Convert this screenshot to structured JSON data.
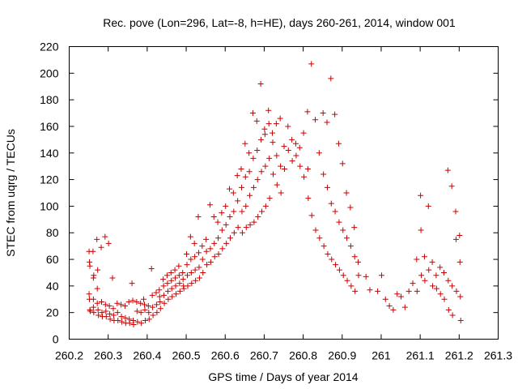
{
  "chart_data": {
    "type": "scatter",
    "title": "Rec. pove (Lon=296, Lat=-8, h=HE), days 260-261, 2014, window 001",
    "xlabel": "GPS time / Days of year 2014",
    "ylabel": "STEC from uqrg / TECUs",
    "xlim": [
      260.2,
      261.3
    ],
    "ylim": [
      0,
      220
    ],
    "xticks": [
      260.2,
      260.3,
      260.4,
      260.5,
      260.6,
      260.7,
      260.8,
      260.9,
      261,
      261.1,
      261.2,
      261.3
    ],
    "yticks": [
      0,
      20,
      40,
      60,
      80,
      100,
      120,
      140,
      160,
      180,
      200,
      220
    ],
    "xtick_labels": [
      "260.2",
      "260.3",
      "260.4",
      "260.5",
      "260.6",
      "260.7",
      "260.8",
      "260.9",
      "261",
      "261.1",
      "261.2",
      "261.3"
    ],
    "ytick_labels": [
      "0",
      "20",
      "40",
      "60",
      "80",
      "100",
      "120",
      "140",
      "160",
      "180",
      "200",
      "220"
    ],
    "grid": false,
    "legend": "none",
    "marker": "plus",
    "color": "#cc0000",
    "points": [
      [
        260.251,
        66
      ],
      [
        260.252,
        58
      ],
      [
        260.253,
        55
      ],
      [
        260.261,
        66
      ],
      [
        260.262,
        46
      ],
      [
        260.263,
        48
      ],
      [
        260.271,
        75
      ],
      [
        260.273,
        52
      ],
      [
        260.282,
        69
      ],
      [
        260.292,
        77
      ],
      [
        260.301,
        72
      ],
      [
        260.311,
        46
      ],
      [
        260.361,
        42
      ],
      [
        260.391,
        30
      ],
      [
        260.411,
        53
      ],
      [
        260.251,
        34
      ],
      [
        260.252,
        30
      ],
      [
        260.253,
        22
      ],
      [
        260.254,
        21
      ],
      [
        260.262,
        30
      ],
      [
        260.262,
        24
      ],
      [
        260.263,
        20
      ],
      [
        260.272,
        38
      ],
      [
        260.272,
        27
      ],
      [
        260.274,
        22
      ],
      [
        260.275,
        18
      ],
      [
        260.283,
        28
      ],
      [
        260.284,
        20
      ],
      [
        260.285,
        17
      ],
      [
        260.293,
        26
      ],
      [
        260.294,
        21
      ],
      [
        260.295,
        17
      ],
      [
        260.303,
        25
      ],
      [
        260.304,
        19
      ],
      [
        260.305,
        15
      ],
      [
        260.313,
        23
      ],
      [
        260.314,
        18
      ],
      [
        260.315,
        14
      ],
      [
        260.323,
        27
      ],
      [
        260.324,
        20
      ],
      [
        260.325,
        14
      ],
      [
        260.333,
        26
      ],
      [
        260.334,
        17
      ],
      [
        260.335,
        13
      ],
      [
        260.343,
        25
      ],
      [
        260.344,
        16
      ],
      [
        260.345,
        12
      ],
      [
        260.353,
        28
      ],
      [
        260.354,
        15
      ],
      [
        260.355,
        12
      ],
      [
        260.363,
        29
      ],
      [
        260.364,
        14
      ],
      [
        260.365,
        11
      ],
      [
        260.373,
        28
      ],
      [
        260.374,
        21
      ],
      [
        260.375,
        13
      ],
      [
        260.383,
        27
      ],
      [
        260.384,
        20
      ],
      [
        260.385,
        12
      ],
      [
        260.393,
        26
      ],
      [
        260.394,
        22
      ],
      [
        260.395,
        14
      ],
      [
        260.403,
        25
      ],
      [
        260.404,
        20
      ],
      [
        260.405,
        15
      ],
      [
        260.413,
        33
      ],
      [
        260.414,
        24
      ],
      [
        260.415,
        18
      ],
      [
        260.423,
        35
      ],
      [
        260.424,
        26
      ],
      [
        260.425,
        20
      ],
      [
        260.431,
        37
      ],
      [
        260.432,
        32
      ],
      [
        260.433,
        28
      ],
      [
        260.434,
        23
      ],
      [
        260.441,
        45
      ],
      [
        260.442,
        40
      ],
      [
        260.443,
        33
      ],
      [
        260.444,
        27
      ],
      [
        260.451,
        48
      ],
      [
        260.452,
        42
      ],
      [
        260.453,
        36
      ],
      [
        260.454,
        30
      ],
      [
        260.461,
        50
      ],
      [
        260.462,
        44
      ],
      [
        260.463,
        38
      ],
      [
        260.464,
        32
      ],
      [
        260.471,
        52
      ],
      [
        260.472,
        46
      ],
      [
        260.473,
        40
      ],
      [
        260.474,
        34
      ],
      [
        260.481,
        55
      ],
      [
        260.482,
        48
      ],
      [
        260.483,
        42
      ],
      [
        260.484,
        36
      ],
      [
        260.491,
        50
      ],
      [
        260.492,
        45
      ],
      [
        260.493,
        40
      ],
      [
        260.494,
        38
      ],
      [
        260.501,
        64
      ],
      [
        260.502,
        56
      ],
      [
        260.503,
        48
      ],
      [
        260.504,
        40
      ],
      [
        260.511,
        77
      ],
      [
        260.512,
        60
      ],
      [
        260.513,
        50
      ],
      [
        260.514,
        42
      ],
      [
        260.521,
        72
      ],
      [
        260.522,
        62
      ],
      [
        260.523,
        52
      ],
      [
        260.524,
        44
      ],
      [
        260.531,
        92
      ],
      [
        260.532,
        65
      ],
      [
        260.533,
        54
      ],
      [
        260.534,
        46
      ],
      [
        260.541,
        70
      ],
      [
        260.542,
        60
      ],
      [
        260.543,
        50
      ],
      [
        260.551,
        75
      ],
      [
        260.552,
        66
      ],
      [
        260.553,
        56
      ],
      [
        260.561,
        101
      ],
      [
        260.562,
        68
      ],
      [
        260.563,
        58
      ],
      [
        260.571,
        92
      ],
      [
        260.572,
        72
      ],
      [
        260.573,
        62
      ],
      [
        260.581,
        88
      ],
      [
        260.582,
        76
      ],
      [
        260.583,
        64
      ],
      [
        260.591,
        95
      ],
      [
        260.592,
        82
      ],
      [
        260.593,
        68
      ],
      [
        260.601,
        100
      ],
      [
        260.602,
        86
      ],
      [
        260.603,
        72
      ],
      [
        260.611,
        113
      ],
      [
        260.612,
        92
      ],
      [
        260.613,
        76
      ],
      [
        260.621,
        110
      ],
      [
        260.622,
        96
      ],
      [
        260.623,
        80
      ],
      [
        260.631,
        123
      ],
      [
        260.632,
        104
      ],
      [
        260.633,
        84
      ],
      [
        260.641,
        128
      ],
      [
        260.642,
        114
      ],
      [
        260.643,
        96
      ],
      [
        260.644,
        80
      ],
      [
        260.651,
        147
      ],
      [
        260.652,
        122
      ],
      [
        260.653,
        100
      ],
      [
        260.654,
        84
      ],
      [
        260.661,
        140
      ],
      [
        260.662,
        126
      ],
      [
        260.663,
        108
      ],
      [
        260.664,
        86
      ],
      [
        260.671,
        170
      ],
      [
        260.672,
        136
      ],
      [
        260.673,
        114
      ],
      [
        260.674,
        88
      ],
      [
        260.681,
        164
      ],
      [
        260.682,
        142
      ],
      [
        260.683,
        120
      ],
      [
        260.684,
        92
      ],
      [
        260.691,
        192
      ],
      [
        260.692,
        150
      ],
      [
        260.693,
        126
      ],
      [
        260.694,
        96
      ],
      [
        260.701,
        158
      ],
      [
        260.702,
        154
      ],
      [
        260.703,
        130
      ],
      [
        260.704,
        100
      ],
      [
        260.711,
        172
      ],
      [
        260.712,
        162
      ],
      [
        260.713,
        136
      ],
      [
        260.714,
        106
      ],
      [
        260.721,
        155
      ],
      [
        260.722,
        148
      ],
      [
        260.723,
        124
      ],
      [
        260.731,
        162
      ],
      [
        260.732,
        138
      ],
      [
        260.733,
        116
      ],
      [
        260.741,
        166
      ],
      [
        260.742,
        130
      ],
      [
        260.743,
        110
      ],
      [
        260.751,
        145
      ],
      [
        260.752,
        128
      ],
      [
        260.761,
        160
      ],
      [
        260.762,
        142
      ],
      [
        260.771,
        150
      ],
      [
        260.772,
        134
      ],
      [
        260.781,
        147
      ],
      [
        260.782,
        138
      ],
      [
        260.791,
        144
      ],
      [
        260.792,
        130
      ],
      [
        260.801,
        155
      ],
      [
        260.802,
        122
      ],
      [
        260.811,
        171
      ],
      [
        260.812,
        128
      ],
      [
        260.813,
        106
      ],
      [
        260.821,
        207
      ],
      [
        260.822,
        93
      ],
      [
        260.831,
        165
      ],
      [
        260.832,
        82
      ],
      [
        260.841,
        140
      ],
      [
        260.842,
        76
      ],
      [
        260.851,
        170
      ],
      [
        260.852,
        124
      ],
      [
        260.853,
        70
      ],
      [
        260.861,
        163
      ],
      [
        260.862,
        114
      ],
      [
        260.863,
        64
      ],
      [
        260.871,
        196
      ],
      [
        260.872,
        102
      ],
      [
        260.873,
        60
      ],
      [
        260.881,
        169
      ],
      [
        260.882,
        96
      ],
      [
        260.883,
        56
      ],
      [
        260.891,
        147
      ],
      [
        260.892,
        88
      ],
      [
        260.893,
        52
      ],
      [
        260.901,
        132
      ],
      [
        260.902,
        82
      ],
      [
        260.903,
        48
      ],
      [
        260.911,
        110
      ],
      [
        260.912,
        76
      ],
      [
        260.913,
        44
      ],
      [
        260.921,
        99
      ],
      [
        260.922,
        70
      ],
      [
        260.923,
        40
      ],
      [
        260.931,
        84
      ],
      [
        260.932,
        62
      ],
      [
        260.933,
        36
      ],
      [
        260.941,
        58
      ],
      [
        260.942,
        48
      ],
      [
        260.961,
        47
      ],
      [
        260.971,
        37
      ],
      [
        260.991,
        36
      ],
      [
        261.001,
        48
      ],
      [
        261.011,
        30
      ],
      [
        261.021,
        25
      ],
      [
        261.031,
        22
      ],
      [
        261.041,
        34
      ],
      [
        261.051,
        32
      ],
      [
        261.061,
        24
      ],
      [
        261.071,
        36
      ],
      [
        261.081,
        42
      ],
      [
        261.091,
        60
      ],
      [
        261.092,
        36
      ],
      [
        261.101,
        108
      ],
      [
        261.102,
        82
      ],
      [
        261.103,
        48
      ],
      [
        261.111,
        62
      ],
      [
        261.112,
        44
      ],
      [
        261.121,
        100
      ],
      [
        261.122,
        52
      ],
      [
        261.131,
        58
      ],
      [
        261.132,
        40
      ],
      [
        261.141,
        48
      ],
      [
        261.142,
        38
      ],
      [
        261.151,
        54
      ],
      [
        261.152,
        34
      ],
      [
        261.161,
        50
      ],
      [
        261.162,
        30
      ],
      [
        261.171,
        127
      ],
      [
        261.172,
        44
      ],
      [
        261.173,
        22
      ],
      [
        261.181,
        115
      ],
      [
        261.182,
        40
      ],
      [
        261.183,
        18
      ],
      [
        261.191,
        96
      ],
      [
        261.192,
        75
      ],
      [
        261.193,
        36
      ],
      [
        261.201,
        78
      ],
      [
        261.202,
        58
      ],
      [
        261.203,
        32
      ],
      [
        261.204,
        14
      ]
    ]
  }
}
